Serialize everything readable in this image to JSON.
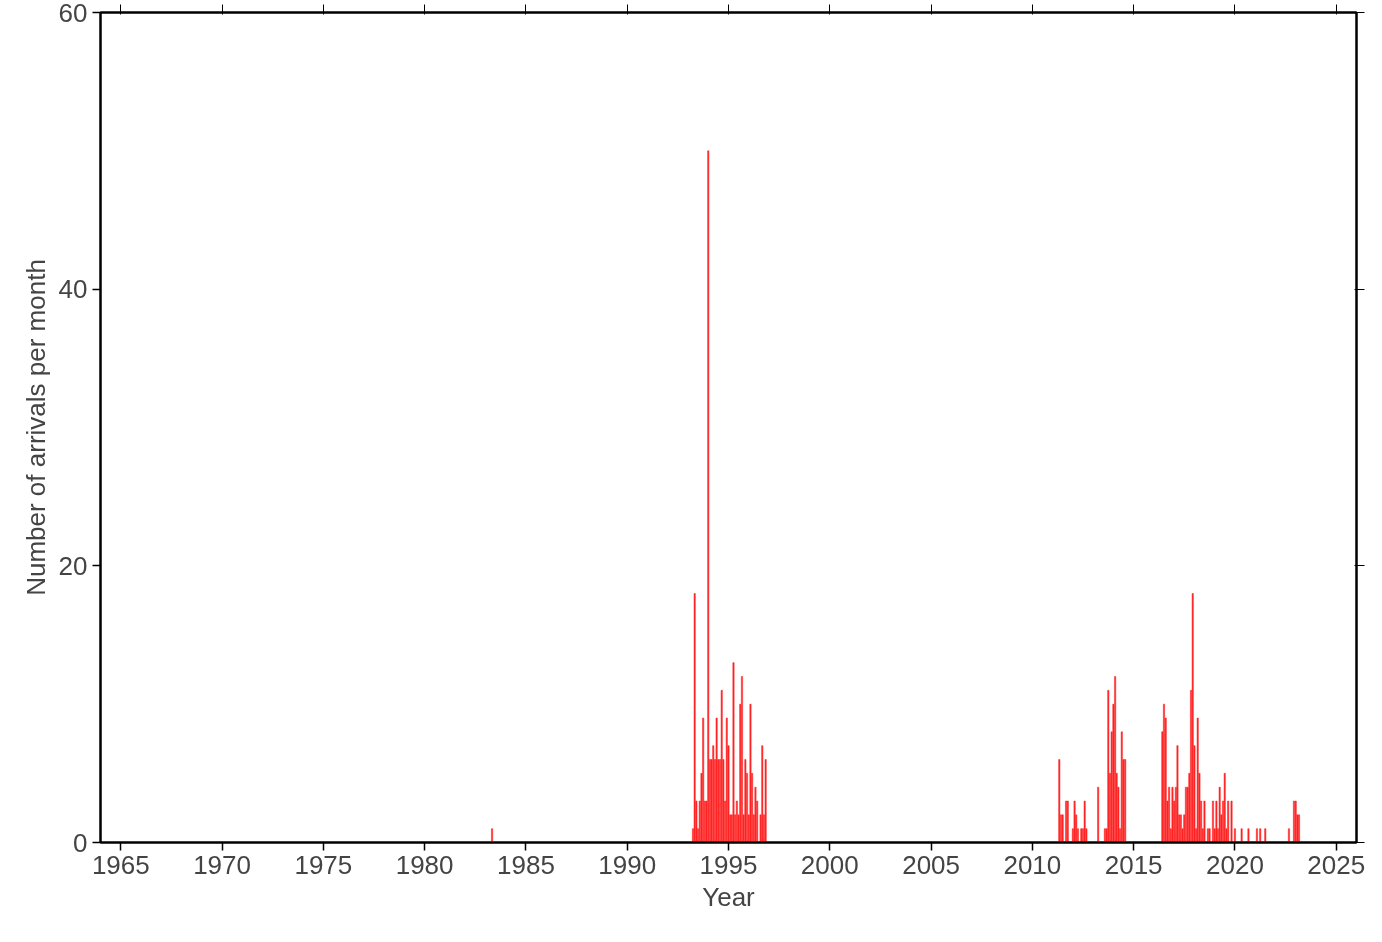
{
  "chart_data": {
    "type": "bar",
    "xlabel": "Year",
    "ylabel": "Number of arrivals per month",
    "color": "#ff2424",
    "x": [
      "1983-05",
      "1993-04",
      "1993-05",
      "1993-06",
      "1993-07",
      "1993-08",
      "1993-09",
      "1993-10",
      "1993-11",
      "1993-12",
      "1994-01",
      "1994-02",
      "1994-03",
      "1994-04",
      "1994-05",
      "1994-06",
      "1994-07",
      "1994-08",
      "1994-09",
      "1994-10",
      "1994-11",
      "1994-12",
      "1995-01",
      "1995-02",
      "1995-03",
      "1995-04",
      "1995-05",
      "1995-06",
      "1995-07",
      "1995-08",
      "1995-09",
      "1995-10",
      "1995-11",
      "1995-12",
      "1996-01",
      "1996-02",
      "1996-03",
      "1996-04",
      "1996-05",
      "1996-06",
      "1996-08",
      "1996-09",
      "1996-10",
      "1996-11",
      "2011-05",
      "2011-06",
      "2011-07",
      "2011-09",
      "2011-10",
      "2012-01",
      "2012-02",
      "2012-03",
      "2012-04",
      "2012-06",
      "2012-07",
      "2012-08",
      "2012-09",
      "2013-04",
      "2013-08",
      "2013-09",
      "2013-10",
      "2013-11",
      "2013-12",
      "2014-01",
      "2014-02",
      "2014-03",
      "2014-04",
      "2014-05",
      "2014-06",
      "2014-07",
      "2014-08",
      "2016-06",
      "2016-07",
      "2016-08",
      "2016-09",
      "2016-10",
      "2016-11",
      "2016-12",
      "2017-01",
      "2017-02",
      "2017-03",
      "2017-04",
      "2017-05",
      "2017-06",
      "2017-07",
      "2017-08",
      "2017-09",
      "2017-10",
      "2017-11",
      "2017-12",
      "2018-01",
      "2018-02",
      "2018-03",
      "2018-04",
      "2018-05",
      "2018-06",
      "2018-07",
      "2018-09",
      "2018-10",
      "2018-12",
      "2019-01",
      "2019-02",
      "2019-03",
      "2019-04",
      "2019-05",
      "2019-06",
      "2019-07",
      "2019-08",
      "2019-09",
      "2019-11",
      "2020-01",
      "2020-05",
      "2020-09",
      "2021-02",
      "2021-04",
      "2021-07",
      "2022-09",
      "2022-12",
      "2023-01",
      "2023-02",
      "2023-03"
    ],
    "values": [
      1,
      1,
      18,
      3,
      1,
      3,
      5,
      9,
      3,
      3,
      50,
      6,
      6,
      7,
      6,
      9,
      6,
      6,
      11,
      6,
      3,
      9,
      7,
      2,
      2,
      13,
      2,
      3,
      2,
      10,
      12,
      2,
      6,
      5,
      2,
      10,
      5,
      2,
      4,
      3,
      2,
      7,
      2,
      6,
      6,
      2,
      2,
      3,
      3,
      1,
      3,
      2,
      1,
      1,
      1,
      3,
      1,
      4,
      1,
      1,
      11,
      5,
      8,
      10,
      12,
      5,
      4,
      1,
      8,
      6,
      6,
      8,
      10,
      9,
      3,
      4,
      1,
      4,
      3,
      4,
      7,
      2,
      2,
      1,
      2,
      4,
      4,
      5,
      11,
      18,
      7,
      1,
      9,
      5,
      3,
      1,
      3,
      1,
      1,
      3,
      1,
      3,
      1,
      4,
      2,
      3,
      5,
      1,
      3,
      3,
      1,
      1,
      1,
      1,
      1,
      1,
      1,
      3,
      3,
      2,
      2
    ],
    "xlim": [
      "1964",
      "2026"
    ],
    "xticks": [
      "1965",
      "1970",
      "1975",
      "1980",
      "1985",
      "1990",
      "1995",
      "2000",
      "2005",
      "2010",
      "2015",
      "2020",
      "2025"
    ],
    "ylim": [
      0,
      60
    ],
    "yticks": [
      0,
      20,
      40,
      60
    ],
    "grid": false
  }
}
